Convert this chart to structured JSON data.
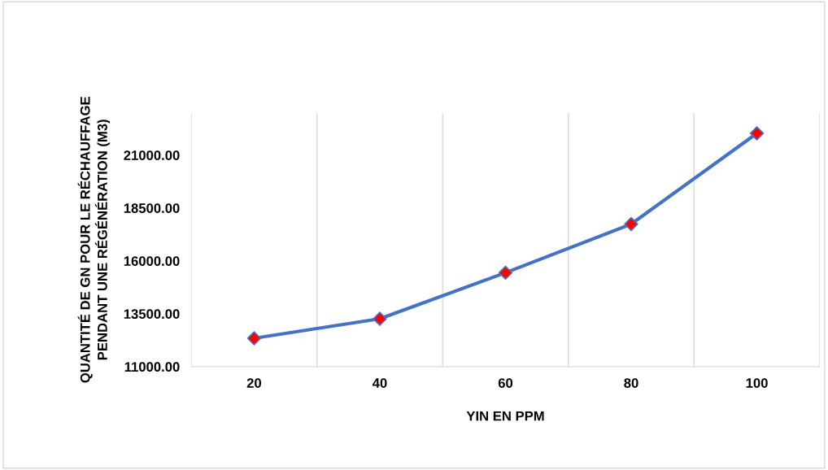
{
  "chart_data": {
    "type": "line",
    "xlabel": "YIN EN PPM",
    "ylabel": "QUANTITÉ DE GN POUR LE RÉCHAUFFAGE\nPENDANT UNE RÉGÉNÉRATION (M3)",
    "categories": [
      "20",
      "40",
      "60",
      "80",
      "100"
    ],
    "series": [
      {
        "color": "#4472c4",
        "colors": [
          "#ff0000",
          "#ff0000",
          "#ff0000",
          "#ff0000",
          "#ff0000"
        ],
        "values": [
          12340,
          13260,
          15440,
          17740,
          22030
        ]
      }
    ],
    "ylim": [
      11000,
      23000
    ],
    "yticks": [
      {
        "value": 11000,
        "label": "11000.00"
      },
      {
        "value": 13500,
        "label": "13500.00"
      },
      {
        "value": 16000,
        "label": "16000.00"
      },
      {
        "value": 18500,
        "label": "18500.00"
      },
      {
        "value": 21000,
        "label": "21000.00"
      }
    ],
    "grid": "x",
    "marker": "diamond",
    "line_style": "solid",
    "legend": false
  }
}
